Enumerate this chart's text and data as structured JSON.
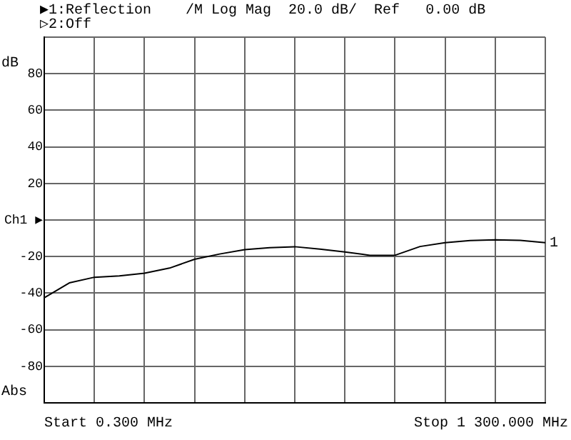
{
  "chart_data": {
    "type": "line",
    "title": "▶1:Reflection    /M Log Mag  20.0 dB/  Ref   0.00 dB",
    "subtitle": "▷2:Off",
    "ylabel": "dB",
    "annotations": [
      "Start 0.300 MHz",
      "Stop 1 300.000 MHz",
      "Abs"
    ],
    "categories": [
      null,
      null,
      null,
      null,
      null,
      null,
      null,
      null,
      null,
      null,
      null,
      null,
      null,
      null,
      null,
      null,
      null,
      null,
      null,
      null,
      null
    ],
    "ylim": [
      -100,
      100
    ],
    "yticks": [
      {
        "value": 100,
        "label": null
      },
      80,
      60,
      40,
      20,
      {
        "value": 0,
        "label": "Ch1 ▶"
      },
      -20,
      -40,
      -60,
      -80,
      {
        "value": -100,
        "label": null
      }
    ],
    "tick_labels": "y",
    "grid": true,
    "legend": false,
    "marker": "none",
    "line_style": "solid",
    "series": [
      {
        "name": "1",
        "color": "#000000",
        "values": [
          -42.5,
          -34.4,
          -31.3,
          -30.6,
          -29.1,
          -26.3,
          -21.5,
          -18.6,
          -16.2,
          -15.1,
          -14.6,
          -15.9,
          -17.5,
          -19.3,
          -19.3,
          -14.5,
          -12.4,
          -11.2,
          -10.8,
          -11.1,
          -12.4
        ]
      }
    ]
  }
}
